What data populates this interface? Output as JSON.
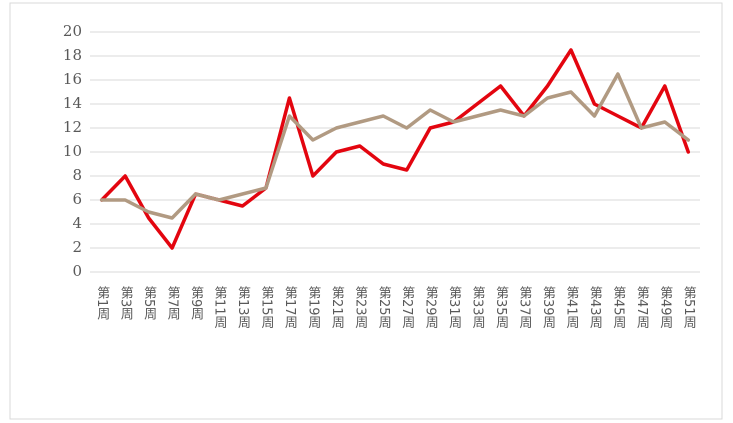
{
  "chart_data": {
    "type": "line",
    "categories": [
      "第1周",
      "第3周",
      "第5周",
      "第7周",
      "第9周",
      "第11周",
      "第13周",
      "第15周",
      "第17周",
      "第19周",
      "第21周",
      "第23周",
      "第25周",
      "第27周",
      "第29周",
      "第31周",
      "第33周",
      "第35周",
      "第37周",
      "第39周",
      "第41周",
      "第43周",
      "第45周",
      "第47周",
      "第49周",
      "第51周"
    ],
    "series": [
      {
        "color": "#e3050f",
        "values": [
          6,
          8,
          4.5,
          2,
          6.5,
          6,
          5.5,
          7,
          14.5,
          8,
          10,
          10.5,
          9,
          8.5,
          12,
          12.5,
          14,
          15.5,
          13,
          15.5,
          18.5,
          14,
          13,
          12,
          15.5,
          10
        ]
      },
      {
        "color": "#b19a82",
        "values": [
          6,
          6,
          5,
          4.5,
          6.5,
          6,
          6.5,
          7,
          13,
          11,
          12,
          12.5,
          13,
          12,
          13.5,
          12.5,
          13,
          13.5,
          13,
          14.5,
          15,
          13,
          16.5,
          12,
          12.5,
          11
        ]
      }
    ],
    "ylim": [
      0,
      20
    ],
    "yticks": [
      0,
      2,
      4,
      6,
      8,
      10,
      12,
      14,
      16,
      18,
      20
    ],
    "grid": true
  }
}
